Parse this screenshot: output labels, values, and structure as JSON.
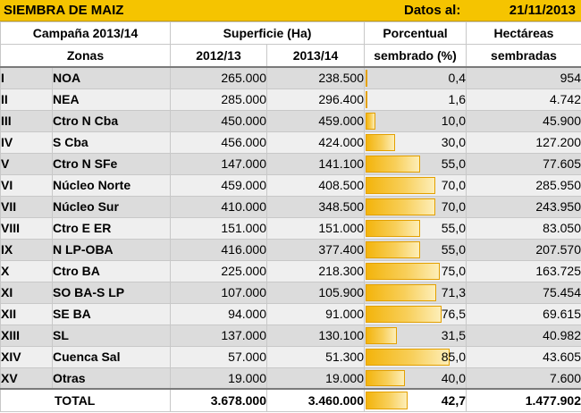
{
  "title": "SIEMBRA DE MAIZ",
  "date_label": "Datos al:",
  "date_value": "21/11/2013",
  "header": {
    "campaign": "Campaña 2013/14",
    "zones": "Zonas",
    "surface": "Superficie (Ha)",
    "y1": "2012/13",
    "y2": "2013/14",
    "pct_line1": "Porcentual",
    "pct_line2": "sembrado (%)",
    "ha_line1": "Hectáreas",
    "ha_line2": "sembradas"
  },
  "rows": [
    {
      "num": "I",
      "zone": "NOA",
      "s1213": "265.000",
      "s1314": "238.500",
      "pct": "0,4",
      "pct_value": 0.4,
      "ha": "954"
    },
    {
      "num": "II",
      "zone": "NEA",
      "s1213": "285.000",
      "s1314": "296.400",
      "pct": "1,6",
      "pct_value": 1.6,
      "ha": "4.742"
    },
    {
      "num": "III",
      "zone": "Ctro N Cba",
      "s1213": "450.000",
      "s1314": "459.000",
      "pct": "10,0",
      "pct_value": 10.0,
      "ha": "45.900"
    },
    {
      "num": "IV",
      "zone": "S Cba",
      "s1213": "456.000",
      "s1314": "424.000",
      "pct": "30,0",
      "pct_value": 30.0,
      "ha": "127.200"
    },
    {
      "num": "V",
      "zone": "Ctro N SFe",
      "s1213": "147.000",
      "s1314": "141.100",
      "pct": "55,0",
      "pct_value": 55.0,
      "ha": "77.605"
    },
    {
      "num": "VI",
      "zone": "Núcleo Norte",
      "s1213": "459.000",
      "s1314": "408.500",
      "pct": "70,0",
      "pct_value": 70.0,
      "ha": "285.950"
    },
    {
      "num": "VII",
      "zone": "Núcleo Sur",
      "s1213": "410.000",
      "s1314": "348.500",
      "pct": "70,0",
      "pct_value": 70.0,
      "ha": "243.950"
    },
    {
      "num": "VIII",
      "zone": "Ctro E ER",
      "s1213": "151.000",
      "s1314": "151.000",
      "pct": "55,0",
      "pct_value": 55.0,
      "ha": "83.050"
    },
    {
      "num": "IX",
      "zone": "N LP-OBA",
      "s1213": "416.000",
      "s1314": "377.400",
      "pct": "55,0",
      "pct_value": 55.0,
      "ha": "207.570"
    },
    {
      "num": "X",
      "zone": "Ctro BA",
      "s1213": "225.000",
      "s1314": "218.300",
      "pct": "75,0",
      "pct_value": 75.0,
      "ha": "163.725"
    },
    {
      "num": "XI",
      "zone": "SO BA-S LP",
      "s1213": "107.000",
      "s1314": "105.900",
      "pct": "71,3",
      "pct_value": 71.3,
      "ha": "75.454"
    },
    {
      "num": "XII",
      "zone": "SE BA",
      "s1213": "94.000",
      "s1314": "91.000",
      "pct": "76,5",
      "pct_value": 76.5,
      "ha": "69.615"
    },
    {
      "num": "XIII",
      "zone": "SL",
      "s1213": "137.000",
      "s1314": "130.100",
      "pct": "31,5",
      "pct_value": 31.5,
      "ha": "40.982"
    },
    {
      "num": "XIV",
      "zone": "Cuenca Sal",
      "s1213": "57.000",
      "s1314": "51.300",
      "pct": "85,0",
      "pct_value": 85.0,
      "ha": "43.605"
    },
    {
      "num": "XV",
      "zone": "Otras",
      "s1213": "19.000",
      "s1314": "19.000",
      "pct": "40,0",
      "pct_value": 40.0,
      "ha": "7.600"
    }
  ],
  "total": {
    "label": "TOTAL",
    "s1213": "3.678.000",
    "s1314": "3.460.000",
    "pct": "42,7",
    "pct_value": 42.7,
    "ha": "1.477.902"
  }
}
